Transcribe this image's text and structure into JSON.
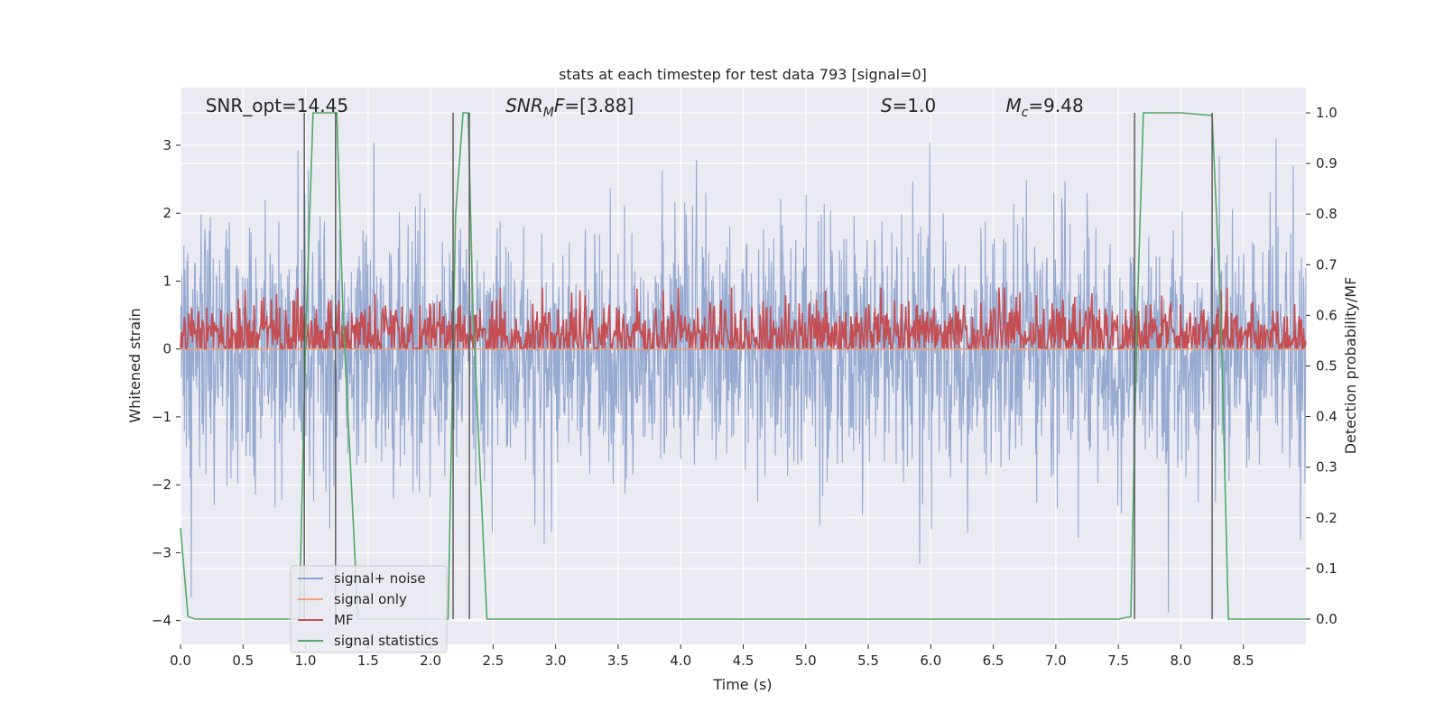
{
  "chart_data": {
    "type": "line",
    "title": "stats at each timestep for test data 793 [signal=0]",
    "xlabel": "Time (s)",
    "ylabel": "Whitened strain",
    "ylabel_right": "Detection probability/MF",
    "xlim": [
      0.0,
      9.0
    ],
    "ylim": [
      -4.35,
      3.85
    ],
    "ylim_right": [
      -0.05,
      1.05
    ],
    "x_ticks": [
      "0.0",
      "0.5",
      "1.0",
      "1.5",
      "2.0",
      "2.5",
      "3.0",
      "3.5",
      "4.0",
      "4.5",
      "5.0",
      "5.5",
      "6.0",
      "6.5",
      "7.0",
      "7.5",
      "8.0",
      "8.5"
    ],
    "y_ticks": [
      "−4",
      "−3",
      "−2",
      "−1",
      "0",
      "1",
      "2",
      "3"
    ],
    "y_ticks_right": [
      "0.0",
      "0.1",
      "0.2",
      "0.3",
      "0.4",
      "0.5",
      "0.6",
      "0.7",
      "0.8",
      "0.9",
      "1.0"
    ],
    "grid": true,
    "legend_position": "lower-left",
    "annotations": [
      {
        "parts": [
          {
            "t": "SNR_opt=14.45",
            "i": false
          }
        ],
        "x": 0.2
      },
      {
        "parts": [
          {
            "t": "SNR",
            "i": true
          },
          {
            "t": "M",
            "i": true,
            "sub": true
          },
          {
            "t": "F",
            "i": true
          },
          {
            "t": "=[3.88]",
            "i": false
          }
        ],
        "x": 2.6
      },
      {
        "parts": [
          {
            "t": "S",
            "i": true
          },
          {
            "t": "=1.0",
            "i": false
          }
        ],
        "x": 5.6
      },
      {
        "parts": [
          {
            "t": "M",
            "i": true
          },
          {
            "t": "c",
            "i": true,
            "sub": true
          },
          {
            "t": "=9.48",
            "i": false
          }
        ],
        "x": 6.6
      }
    ],
    "series": [
      {
        "name": "signal+ noise",
        "color": "#8da2cc",
        "kind": "noise",
        "std": 0.95,
        "x_range": [
          0.0,
          9.0
        ]
      },
      {
        "name": "signal only",
        "color": "#e9a37f",
        "kind": "flat",
        "value": 0.0
      },
      {
        "name": "MF",
        "color": "#c44e52",
        "kind": "mf",
        "mean": 0.56,
        "std": 0.035,
        "axis": "right"
      },
      {
        "name": "signal statistics",
        "color": "#55a868",
        "axis": "right",
        "x": [
          0.0,
          0.06,
          0.12,
          0.95,
          1.0,
          1.06,
          1.1,
          1.25,
          1.3,
          1.42,
          1.5,
          2.14,
          2.2,
          2.26,
          2.3,
          2.34,
          2.45,
          2.5,
          7.5,
          7.6,
          7.65,
          7.7,
          8.0,
          8.25,
          8.32,
          8.38,
          8.45,
          9.0
        ],
        "y": [
          0.18,
          0.005,
          0.0,
          0.0,
          0.55,
          1.0,
          1.0,
          1.0,
          0.6,
          0.0,
          0.0,
          0.0,
          0.8,
          1.0,
          1.0,
          0.6,
          0.0,
          0.0,
          0.0,
          0.005,
          0.6,
          1.0,
          1.0,
          0.995,
          0.6,
          0.0,
          0.0,
          0.0
        ]
      }
    ],
    "vertical_lines": [
      0.99,
      1.24,
      2.18,
      2.31,
      7.63,
      8.25
    ]
  }
}
